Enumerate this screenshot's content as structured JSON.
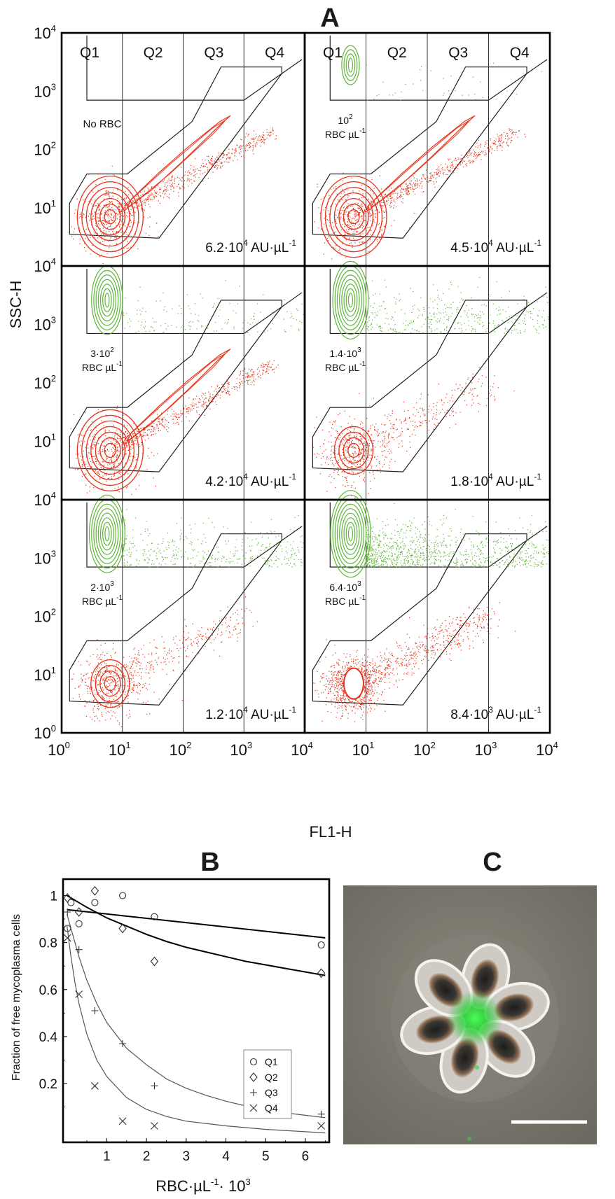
{
  "panel_letters": {
    "a": "A",
    "b": "B",
    "c": "C"
  },
  "chart_data": [
    {
      "type": "scatter",
      "panel": "A",
      "xlabel": "FL1-H",
      "ylabel": "SSC-H",
      "xscale": "log",
      "yscale": "log",
      "xlim": [
        1,
        10000
      ],
      "ylim": [
        1,
        10000
      ],
      "x_tick_labels": [
        {
          "base": "10",
          "exp": "0"
        },
        {
          "base": "10",
          "exp": "1"
        },
        {
          "base": "10",
          "exp": "2"
        },
        {
          "base": "10",
          "exp": "3"
        },
        {
          "base": "10",
          "exp": "4"
        }
      ],
      "x_tick_labels_right": [
        {
          "base": "10",
          "exp": "1"
        },
        {
          "base": "10",
          "exp": "2"
        },
        {
          "base": "10",
          "exp": "3"
        },
        {
          "base": "10",
          "exp": "4"
        }
      ],
      "y_tick_labels": [
        {
          "base": "10",
          "exp": "0"
        },
        {
          "base": "10",
          "exp": "1"
        },
        {
          "base": "10",
          "exp": "2"
        },
        {
          "base": "10",
          "exp": "3"
        },
        {
          "base": "10",
          "exp": "4"
        }
      ],
      "quadrants": [
        "Q1",
        "Q2",
        "Q3",
        "Q4"
      ],
      "quadrant_boundaries": [
        10,
        100,
        1000
      ],
      "subplots": [
        {
          "rbc_line1": "No RBC",
          "rbc_line2": "",
          "conc_mant": "6.2·10",
          "conc_exp": "4",
          "conc_unit": "AU·µL",
          "conc_unit_exp": "-1",
          "green": "none",
          "red": "full"
        },
        {
          "rbc_line1": "10",
          "rbc_line1_exp": "2",
          "rbc_line2": "RBC µL",
          "rbc_line2_exp": "-1",
          "conc_mant": "4.5·10",
          "conc_exp": "4",
          "conc_unit": "AU·µL",
          "conc_unit_exp": "-1",
          "green": "small",
          "red": "full"
        },
        {
          "rbc_line1": "3·10",
          "rbc_line1_exp": "2",
          "rbc_line2": "RBC µL",
          "rbc_line2_exp": "-1",
          "conc_mant": "4.2·10",
          "conc_exp": "4",
          "conc_unit": "AU·µL",
          "conc_unit_exp": "-1",
          "green": "medium",
          "red": "full"
        },
        {
          "rbc_line1": "1.4·10",
          "rbc_line1_exp": "3",
          "rbc_line2": "RBC µL",
          "rbc_line2_exp": "-1",
          "conc_mant": "1.8·10",
          "conc_exp": "4",
          "conc_unit": "AU·µL",
          "conc_unit_exp": "-1",
          "green": "large",
          "red": "reduced"
        },
        {
          "rbc_line1": "2·10",
          "rbc_line1_exp": "3",
          "rbc_line2": "RBC µL",
          "rbc_line2_exp": "-1",
          "conc_mant": "1.2·10",
          "conc_exp": "4",
          "conc_unit": "AU·µL",
          "conc_unit_exp": "-1",
          "green": "large",
          "red": "reduced"
        },
        {
          "rbc_line1": "6.4·10",
          "rbc_line1_exp": "3",
          "rbc_line2": "RBC µL",
          "rbc_line2_exp": "-1",
          "conc_mant": "8.4·10",
          "conc_exp": "3",
          "conc_unit": "AU·µL",
          "conc_unit_exp": "-1",
          "green": "dense",
          "red": "compact"
        }
      ],
      "colors": {
        "red": "#e8341c",
        "green": "#5fb53a"
      }
    },
    {
      "type": "scatter",
      "panel": "B",
      "ylabel": "Fraction of free mycoplasma cells",
      "xlabel_main": "RBC·µL",
      "xlabel_exp": "-1",
      "xlabel_tail": "· 10",
      "xlabel_tail_exp": "3",
      "xlim": [
        -0.1,
        6.6
      ],
      "ylim": [
        -0.05,
        1.07
      ],
      "x_ticks": [
        1,
        2,
        3,
        4,
        5,
        6
      ],
      "x_tick_labels": [
        "1",
        "2",
        "3",
        "4",
        "5",
        "6"
      ],
      "y_ticks": [
        0.2,
        0.4,
        0.6,
        0.8,
        1
      ],
      "y_tick_labels": [
        "0.2",
        "0.4",
        "0.6",
        "0.8",
        "1"
      ],
      "series": [
        {
          "name": "Q1",
          "marker": "circle",
          "x": [
            0.01,
            0.1,
            0.3,
            0.7,
            1.4,
            2.2,
            6.4
          ],
          "y": [
            0.86,
            0.97,
            0.88,
            0.97,
            1.0,
            0.91,
            0.79
          ],
          "fit_x": [
            0,
            6.5
          ],
          "fit_y": [
            0.94,
            0.82
          ]
        },
        {
          "name": "Q2",
          "marker": "diamond",
          "x": [
            0.01,
            0.3,
            0.7,
            1.4,
            2.2,
            6.4
          ],
          "y": [
            0.99,
            0.93,
            1.02,
            0.86,
            0.72,
            0.67
          ],
          "fit_x": [
            0,
            0.5,
            1,
            1.5,
            2,
            2.5,
            3,
            3.5,
            4,
            4.5,
            5,
            5.5,
            6,
            6.5
          ],
          "fit_y": [
            1.0,
            0.95,
            0.905,
            0.87,
            0.835,
            0.805,
            0.78,
            0.76,
            0.74,
            0.72,
            0.705,
            0.69,
            0.675,
            0.66
          ]
        },
        {
          "name": "Q3",
          "marker": "plus",
          "x": [
            0.01,
            0.3,
            0.7,
            1.4,
            2.2,
            6.4
          ],
          "y": [
            0.93,
            0.77,
            0.51,
            0.37,
            0.19,
            0.07
          ],
          "fit_x": [
            0,
            0.1,
            0.2,
            0.3,
            0.5,
            0.75,
            1,
            1.5,
            2,
            2.5,
            3,
            3.5,
            4,
            4.5,
            5,
            5.5,
            6,
            6.5
          ],
          "fit_y": [
            0.92,
            0.86,
            0.8,
            0.74,
            0.64,
            0.54,
            0.46,
            0.35,
            0.28,
            0.22,
            0.18,
            0.15,
            0.125,
            0.105,
            0.09,
            0.075,
            0.065,
            0.055
          ]
        },
        {
          "name": "Q4",
          "marker": "x",
          "x": [
            0.01,
            0.3,
            0.7,
            1.4,
            2.2,
            6.4
          ],
          "y": [
            0.82,
            0.58,
            0.19,
            0.04,
            0.02,
            0.02
          ],
          "fit_x": [
            0,
            0.1,
            0.2,
            0.3,
            0.5,
            0.75,
            1,
            1.5,
            2,
            2.5,
            3,
            3.5,
            4,
            5,
            6,
            6.5
          ],
          "fit_y": [
            0.87,
            0.74,
            0.63,
            0.54,
            0.41,
            0.3,
            0.23,
            0.14,
            0.09,
            0.06,
            0.04,
            0.03,
            0.02,
            0.005,
            -0.005,
            -0.01
          ]
        }
      ],
      "legend_position": "middle-right"
    }
  ],
  "panel_c": {
    "description_free": true,
    "scale_bar": true,
    "colors": {
      "background": "#767469",
      "rbc_edge": "#f2f0ec",
      "rbc_shadow": "#3c3a36",
      "fluorescence": "#38e04a"
    }
  }
}
